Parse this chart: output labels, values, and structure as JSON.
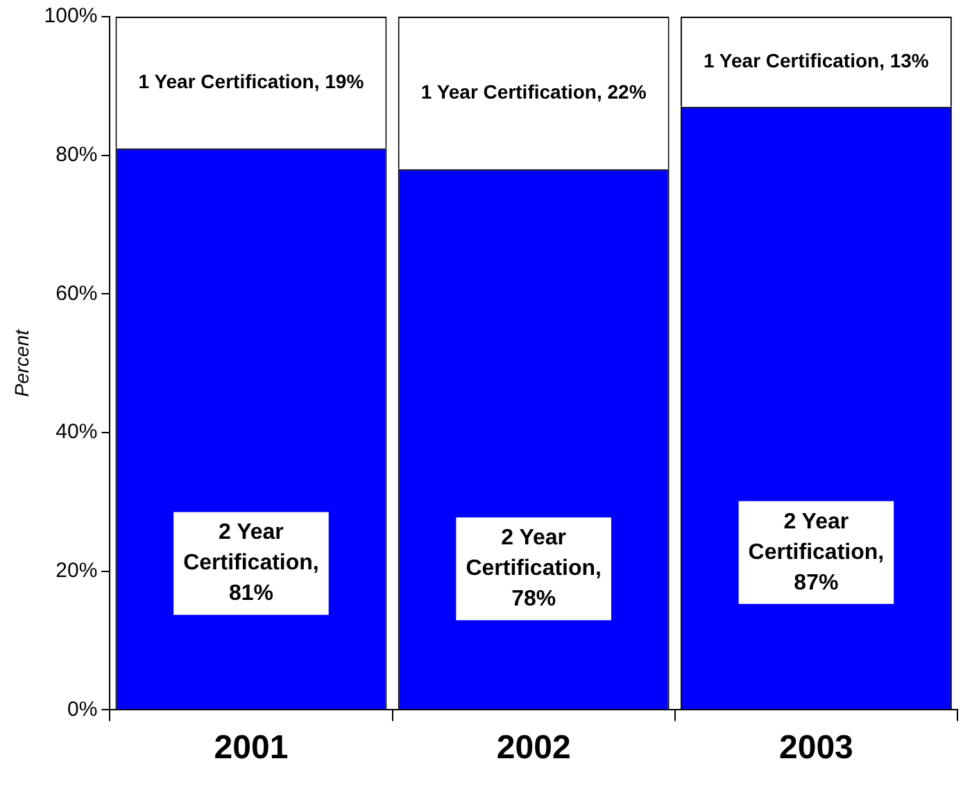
{
  "chart_data": {
    "type": "bar",
    "stacked": true,
    "ylabel": "Percent",
    "categories": [
      "2001",
      "2002",
      "2003"
    ],
    "ylim": [
      0,
      100
    ],
    "yticks": [
      {
        "value": 0,
        "label": "0%"
      },
      {
        "value": 20,
        "label": "20%"
      },
      {
        "value": 40,
        "label": "40%"
      },
      {
        "value": 60,
        "label": "60%"
      },
      {
        "value": 80,
        "label": "80%"
      },
      {
        "value": 100,
        "label": "100%"
      }
    ],
    "grid": false,
    "legend": false,
    "series": [
      {
        "color": "#0000ff",
        "values": [
          81,
          78,
          87
        ],
        "value_labels": [
          "2 Year Certification, 81%",
          "2 Year Certification, 78%",
          "2 Year Certification, 87%"
        ]
      },
      {
        "color": "#ffffff",
        "values": [
          19,
          22,
          13
        ],
        "value_labels": [
          "1 Year Certification, 19%",
          "1 Year Certification, 22%",
          "1 Year Certification, 13%"
        ]
      }
    ]
  }
}
